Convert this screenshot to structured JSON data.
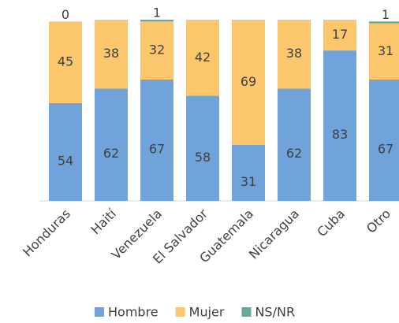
{
  "chart_data": {
    "type": "stacked_bar",
    "categories": [
      "Honduras",
      "Haití",
      "Venezuela",
      "El Salvador",
      "Guatemala",
      "Nicaragua",
      "Cuba",
      "Otro"
    ],
    "series": [
      {
        "name": "Hombre",
        "color": "#6fa3d9",
        "values": [
          54,
          62,
          67,
          58,
          31,
          62,
          83,
          67
        ]
      },
      {
        "name": "Mujer",
        "color": "#fcc66d",
        "values": [
          45,
          38,
          32,
          42,
          69,
          38,
          17,
          31
        ]
      },
      {
        "name": "NS/NR",
        "color": "#6aa99a",
        "values": [
          0,
          null,
          1,
          null,
          null,
          null,
          null,
          1
        ]
      }
    ],
    "ylim": [
      0,
      100
    ]
  }
}
